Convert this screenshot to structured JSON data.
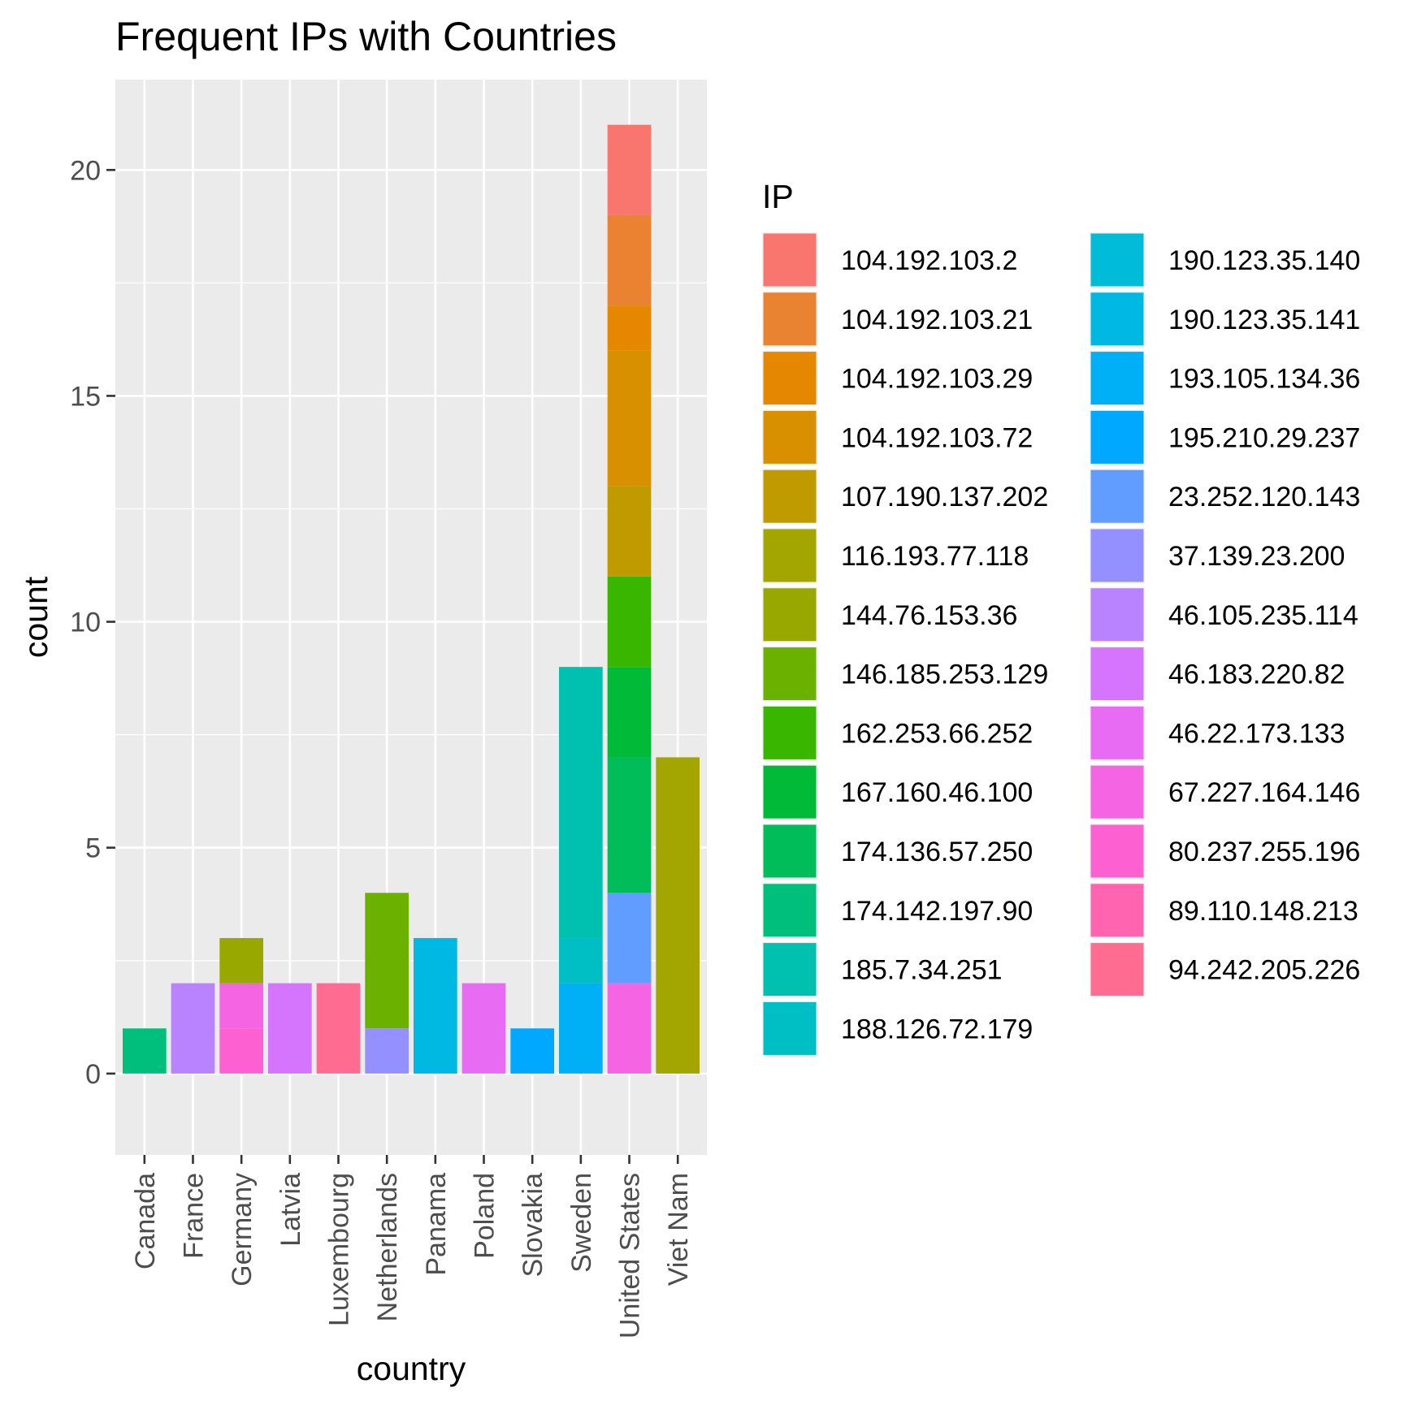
{
  "chart_data": {
    "type": "bar",
    "stacked": true,
    "title": "Frequent IPs with Countries",
    "xlabel": "country",
    "ylabel": "count",
    "ylim": [
      -1.8,
      22
    ],
    "yticks": [
      0,
      5,
      10,
      15,
      20
    ],
    "grid": true,
    "legend": {
      "title": "IP",
      "placement": "right",
      "columns": 2
    },
    "categories": [
      "Canada",
      "France",
      "Germany",
      "Latvia",
      "Luxembourg",
      "Netherlands",
      "Panama",
      "Poland",
      "Slovakia",
      "Sweden",
      "United States",
      "Viet Nam"
    ],
    "series": [
      {
        "name": "104.192.103.2",
        "color": "#F8766D",
        "values": [
          0,
          0,
          0,
          0,
          0,
          0,
          0,
          0,
          0,
          0,
          2,
          0
        ]
      },
      {
        "name": "104.192.103.21",
        "color": "#EA8331",
        "values": [
          0,
          0,
          0,
          0,
          0,
          0,
          0,
          0,
          0,
          0,
          2,
          0
        ]
      },
      {
        "name": "104.192.103.29",
        "color": "#E58700",
        "values": [
          0,
          0,
          0,
          0,
          0,
          0,
          0,
          0,
          0,
          0,
          1,
          0
        ]
      },
      {
        "name": "104.192.103.72",
        "color": "#D89000",
        "values": [
          0,
          0,
          0,
          0,
          0,
          0,
          0,
          0,
          0,
          0,
          3,
          0
        ]
      },
      {
        "name": "107.190.137.202",
        "color": "#C09B00",
        "values": [
          0,
          0,
          0,
          0,
          0,
          0,
          0,
          0,
          0,
          0,
          2,
          0
        ]
      },
      {
        "name": "116.193.77.118",
        "color": "#A3A500",
        "values": [
          0,
          0,
          0,
          0,
          0,
          0,
          0,
          0,
          0,
          0,
          0,
          7
        ]
      },
      {
        "name": "144.76.153.36",
        "color": "#99A800",
        "values": [
          0,
          0,
          1,
          0,
          0,
          0,
          0,
          0,
          0,
          0,
          0,
          0
        ]
      },
      {
        "name": "146.185.253.129",
        "color": "#6BB100",
        "values": [
          0,
          0,
          0,
          0,
          0,
          3,
          0,
          0,
          0,
          0,
          0,
          0
        ]
      },
      {
        "name": "162.253.66.252",
        "color": "#39B600",
        "values": [
          0,
          0,
          0,
          0,
          0,
          0,
          0,
          0,
          0,
          0,
          2,
          0
        ]
      },
      {
        "name": "167.160.46.100",
        "color": "#00BA38",
        "values": [
          0,
          0,
          0,
          0,
          0,
          0,
          0,
          0,
          0,
          0,
          2,
          0
        ]
      },
      {
        "name": "174.136.57.250",
        "color": "#00BC59",
        "values": [
          0,
          0,
          0,
          0,
          0,
          0,
          0,
          0,
          0,
          0,
          3,
          0
        ]
      },
      {
        "name": "174.142.197.90",
        "color": "#00BF7D",
        "values": [
          1,
          0,
          0,
          0,
          0,
          0,
          0,
          0,
          0,
          0,
          0,
          0
        ]
      },
      {
        "name": "185.7.34.251",
        "color": "#00C0AF",
        "values": [
          0,
          0,
          0,
          0,
          0,
          0,
          0,
          0,
          0,
          6,
          0,
          0
        ]
      },
      {
        "name": "188.126.72.179",
        "color": "#00BFC4",
        "values": [
          0,
          0,
          0,
          0,
          0,
          0,
          0,
          0,
          0,
          1,
          0,
          0
        ]
      },
      {
        "name": "190.123.35.140",
        "color": "#00BCD8",
        "values": [
          0,
          0,
          0,
          0,
          0,
          0,
          0,
          0,
          0,
          0,
          0,
          0
        ]
      },
      {
        "name": "190.123.35.141",
        "color": "#00B9E3",
        "values": [
          0,
          0,
          0,
          0,
          0,
          0,
          3,
          0,
          0,
          0,
          0,
          0
        ]
      },
      {
        "name": "193.105.134.36",
        "color": "#00B0F6",
        "values": [
          0,
          0,
          0,
          0,
          0,
          0,
          0,
          0,
          0,
          2,
          0,
          0
        ]
      },
      {
        "name": "195.210.29.237",
        "color": "#00A9FF",
        "values": [
          0,
          0,
          0,
          0,
          0,
          0,
          0,
          0,
          1,
          0,
          0,
          0
        ]
      },
      {
        "name": "23.252.120.143",
        "color": "#619CFF",
        "values": [
          0,
          0,
          0,
          0,
          0,
          0,
          0,
          0,
          0,
          0,
          2,
          0
        ]
      },
      {
        "name": "37.139.23.200",
        "color": "#9590FF",
        "values": [
          0,
          0,
          0,
          0,
          0,
          1,
          0,
          0,
          0,
          0,
          0,
          0
        ]
      },
      {
        "name": "46.105.235.114",
        "color": "#B983FF",
        "values": [
          0,
          2,
          0,
          0,
          0,
          0,
          0,
          0,
          0,
          0,
          0,
          0
        ]
      },
      {
        "name": "46.183.220.82",
        "color": "#D575FE",
        "values": [
          0,
          0,
          0,
          2,
          0,
          0,
          0,
          0,
          0,
          0,
          0,
          0
        ]
      },
      {
        "name": "46.22.173.133",
        "color": "#E76BF3",
        "values": [
          0,
          0,
          0,
          0,
          0,
          0,
          0,
          2,
          0,
          0,
          0,
          0
        ]
      },
      {
        "name": "67.227.164.146",
        "color": "#F564E3",
        "values": [
          0,
          0,
          1,
          0,
          0,
          0,
          0,
          0,
          0,
          0,
          2,
          0
        ]
      },
      {
        "name": "80.237.255.196",
        "color": "#FD61D1",
        "values": [
          0,
          0,
          1,
          0,
          0,
          0,
          0,
          0,
          0,
          0,
          0,
          0
        ]
      },
      {
        "name": "89.110.148.213",
        "color": "#FF64B0",
        "values": [
          0,
          0,
          0,
          0,
          0,
          0,
          0,
          0,
          0,
          0,
          0,
          0
        ]
      },
      {
        "name": "94.242.205.226",
        "color": "#FF6C91",
        "values": [
          0,
          0,
          0,
          0,
          2,
          0,
          0,
          0,
          0,
          0,
          0,
          0
        ]
      }
    ]
  }
}
